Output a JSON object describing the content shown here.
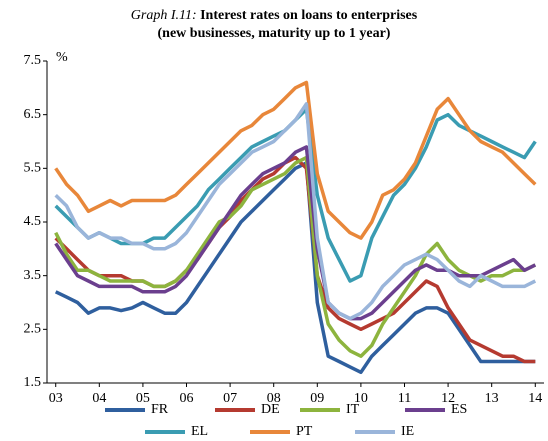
{
  "chart_data": {
    "type": "line",
    "title_label": "Graph I.11:",
    "title": "Interest rates on loans to enterprises",
    "subtitle": "(new businesses, maturity up to 1 year)",
    "y_unit": "%",
    "x": [
      3,
      3.25,
      3.5,
      3.75,
      4,
      4.25,
      4.5,
      4.75,
      5,
      5.25,
      5.5,
      5.75,
      6,
      6.25,
      6.5,
      6.75,
      7,
      7.25,
      7.5,
      7.75,
      8,
      8.25,
      8.5,
      8.75,
      9,
      9.25,
      9.5,
      9.75,
      10,
      10.25,
      10.5,
      10.75,
      11,
      11.25,
      11.5,
      11.75,
      12,
      12.25,
      12.5,
      12.75,
      13,
      13.25,
      13.5,
      13.75,
      14
    ],
    "xlim": [
      2.8,
      14.2
    ],
    "xticks": [
      {
        "value": 3,
        "label": "03"
      },
      {
        "value": 4,
        "label": "04"
      },
      {
        "value": 5,
        "label": "05"
      },
      {
        "value": 6,
        "label": "06"
      },
      {
        "value": 7,
        "label": "07"
      },
      {
        "value": 8,
        "label": "08"
      },
      {
        "value": 9,
        "label": "09"
      },
      {
        "value": 10,
        "label": "10"
      },
      {
        "value": 11,
        "label": "11"
      },
      {
        "value": 12,
        "label": "12"
      },
      {
        "value": 13,
        "label": "13"
      },
      {
        "value": 14,
        "label": "14"
      }
    ],
    "ylim": [
      1.5,
      7.5
    ],
    "yticks": [
      1.5,
      2.5,
      3.5,
      4.5,
      5.5,
      6.5,
      7.5
    ],
    "series": [
      {
        "name": "FR",
        "color": "#2f5f9e",
        "values": [
          3.2,
          3.1,
          3.0,
          2.8,
          2.9,
          2.9,
          2.85,
          2.9,
          3.0,
          2.9,
          2.8,
          2.8,
          3.0,
          3.3,
          3.6,
          3.9,
          4.2,
          4.5,
          4.7,
          4.9,
          5.1,
          5.3,
          5.5,
          5.6,
          3.0,
          2.0,
          1.9,
          1.8,
          1.7,
          2.0,
          2.2,
          2.4,
          2.6,
          2.8,
          2.9,
          2.9,
          2.8,
          2.5,
          2.2,
          1.9,
          1.9,
          1.9,
          1.9,
          1.9,
          1.9
        ]
      },
      {
        "name": "DE",
        "color": "#b53a30",
        "values": [
          4.2,
          4.0,
          3.8,
          3.6,
          3.5,
          3.5,
          3.5,
          3.4,
          3.4,
          3.3,
          3.3,
          3.4,
          3.6,
          3.8,
          4.1,
          4.4,
          4.6,
          4.9,
          5.1,
          5.3,
          5.4,
          5.6,
          5.7,
          5.5,
          3.5,
          2.9,
          2.7,
          2.6,
          2.5,
          2.6,
          2.7,
          2.8,
          3.0,
          3.2,
          3.4,
          3.3,
          2.9,
          2.6,
          2.3,
          2.2,
          2.1,
          2.0,
          2.0,
          1.9,
          1.9
        ]
      },
      {
        "name": "IT",
        "color": "#8db43e",
        "values": [
          4.3,
          3.9,
          3.6,
          3.6,
          3.5,
          3.4,
          3.4,
          3.4,
          3.4,
          3.3,
          3.3,
          3.4,
          3.6,
          3.9,
          4.2,
          4.5,
          4.6,
          4.8,
          5.1,
          5.2,
          5.3,
          5.4,
          5.6,
          5.7,
          3.5,
          2.6,
          2.3,
          2.1,
          2.0,
          2.2,
          2.6,
          2.9,
          3.2,
          3.5,
          3.9,
          4.1,
          3.8,
          3.6,
          3.5,
          3.4,
          3.5,
          3.5,
          3.6,
          3.6,
          3.7
        ]
      },
      {
        "name": "ES",
        "color": "#6b3f8e",
        "values": [
          4.1,
          3.8,
          3.5,
          3.4,
          3.3,
          3.3,
          3.3,
          3.3,
          3.2,
          3.2,
          3.2,
          3.3,
          3.5,
          3.8,
          4.1,
          4.4,
          4.7,
          5.0,
          5.2,
          5.4,
          5.5,
          5.6,
          5.8,
          5.9,
          4.0,
          3.0,
          2.8,
          2.7,
          2.7,
          2.8,
          3.0,
          3.2,
          3.4,
          3.6,
          3.7,
          3.6,
          3.6,
          3.5,
          3.5,
          3.5,
          3.6,
          3.7,
          3.8,
          3.6,
          3.7
        ]
      },
      {
        "name": "EL",
        "color": "#3a9cb2",
        "values": [
          4.8,
          4.6,
          4.4,
          4.2,
          4.3,
          4.2,
          4.1,
          4.1,
          4.1,
          4.2,
          4.2,
          4.4,
          4.6,
          4.8,
          5.1,
          5.3,
          5.5,
          5.7,
          5.9,
          6.0,
          6.1,
          6.2,
          6.4,
          6.6,
          5.0,
          4.2,
          3.8,
          3.4,
          3.5,
          4.2,
          4.6,
          5.0,
          5.2,
          5.5,
          5.9,
          6.4,
          6.5,
          6.3,
          6.2,
          6.1,
          6.0,
          5.9,
          5.8,
          5.7,
          6.0
        ]
      },
      {
        "name": "PT",
        "color": "#e8873a",
        "values": [
          5.5,
          5.2,
          5.0,
          4.7,
          4.8,
          4.9,
          4.8,
          4.9,
          4.9,
          4.9,
          4.9,
          5.0,
          5.2,
          5.4,
          5.6,
          5.8,
          6.0,
          6.2,
          6.3,
          6.5,
          6.6,
          6.8,
          7.0,
          7.1,
          5.4,
          4.7,
          4.5,
          4.3,
          4.2,
          4.5,
          5.0,
          5.1,
          5.3,
          5.6,
          6.1,
          6.6,
          6.8,
          6.5,
          6.2,
          6.0,
          5.9,
          5.8,
          5.6,
          5.4,
          5.2
        ]
      },
      {
        "name": "IE",
        "color": "#9ab5da",
        "values": [
          5.0,
          4.8,
          4.4,
          4.2,
          4.3,
          4.2,
          4.2,
          4.1,
          4.1,
          4.0,
          4.0,
          4.1,
          4.3,
          4.6,
          4.9,
          5.2,
          5.4,
          5.6,
          5.8,
          5.9,
          6.0,
          6.2,
          6.4,
          6.7,
          4.2,
          3.0,
          2.8,
          2.7,
          2.8,
          3.0,
          3.3,
          3.5,
          3.7,
          3.8,
          3.9,
          3.8,
          3.6,
          3.4,
          3.3,
          3.5,
          3.4,
          3.3,
          3.3,
          3.3,
          3.4
        ]
      }
    ]
  }
}
